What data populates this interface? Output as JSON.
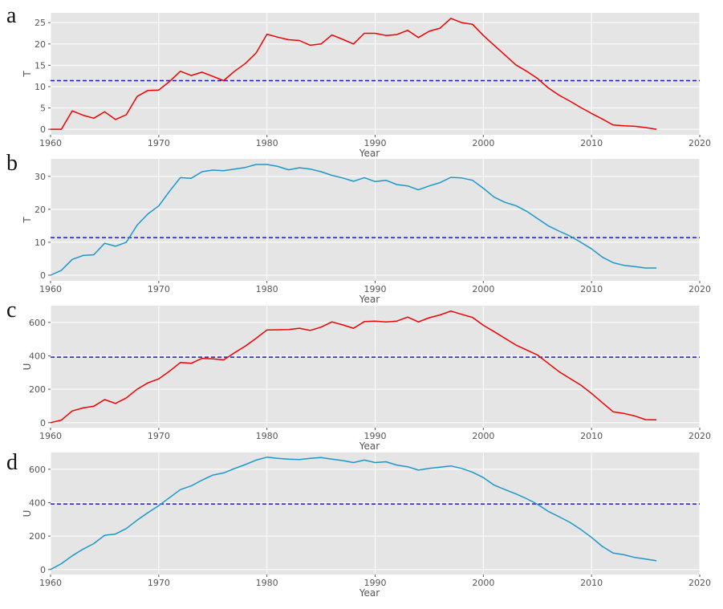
{
  "chart_data": [
    {
      "type": "line",
      "panel_label": "a",
      "xlabel": "Year",
      "ylabel": "T",
      "xlim": [
        1960,
        2020
      ],
      "ylim": [
        -1.3,
        27.3
      ],
      "xticks": [
        1960,
        1970,
        1980,
        1990,
        2000,
        2010,
        2020
      ],
      "yticks": [
        0,
        5,
        10,
        15,
        20,
        25
      ],
      "grid": true,
      "x": [
        1960,
        1961,
        1962,
        1963,
        1964,
        1965,
        1966,
        1967,
        1968,
        1969,
        1970,
        1971,
        1972,
        1973,
        1974,
        1975,
        1976,
        1977,
        1978,
        1979,
        1980,
        1981,
        1982,
        1983,
        1984,
        1985,
        1986,
        1987,
        1988,
        1989,
        1990,
        1991,
        1992,
        1993,
        1994,
        1995,
        1996,
        1997,
        1998,
        1999,
        2000,
        2001,
        2002,
        2003,
        2004,
        2005,
        2006,
        2007,
        2008,
        2009,
        2010,
        2011,
        2012,
        2013,
        2014,
        2015,
        2016
      ],
      "series": [
        {
          "values": [
            0,
            0,
            4.3,
            3.3,
            2.6,
            4.1,
            2.3,
            3.4,
            7.7,
            9.1,
            9.2,
            11.2,
            13.6,
            12.6,
            13.4,
            12.4,
            11.4,
            13.6,
            15.4,
            17.9,
            22.3,
            21.6,
            21.0,
            20.8,
            19.7,
            20.0,
            22.1,
            21.1,
            20.0,
            22.5,
            22.5,
            22.0,
            22.2,
            23.2,
            21.5,
            23.0,
            23.7,
            26.0,
            25.0,
            24.6,
            22.0,
            19.7,
            17.4,
            15.1,
            13.6,
            11.9,
            9.7,
            8.0,
            6.6,
            5.1,
            3.7,
            2.4,
            1.0,
            0.8,
            0.7,
            0.4,
            0.0
          ],
          "color": "#ee0000"
        }
      ],
      "hline": {
        "value": 11.4,
        "color": "#1a1acc",
        "style": "dashed"
      }
    },
    {
      "type": "line",
      "panel_label": "b",
      "xlabel": "Year",
      "ylabel": "T",
      "xlim": [
        1960,
        2020
      ],
      "ylim": [
        -1.7,
        35.3
      ],
      "xticks": [
        1960,
        1970,
        1980,
        1990,
        2000,
        2010,
        2020
      ],
      "yticks": [
        0,
        10,
        20,
        30
      ],
      "grid": true,
      "x": [
        1960,
        1961,
        1962,
        1963,
        1964,
        1965,
        1966,
        1967,
        1968,
        1969,
        1970,
        1971,
        1972,
        1973,
        1974,
        1975,
        1976,
        1977,
        1978,
        1979,
        1980,
        1981,
        1982,
        1983,
        1984,
        1985,
        1986,
        1987,
        1988,
        1989,
        1990,
        1991,
        1992,
        1993,
        1994,
        1995,
        1996,
        1997,
        1998,
        1999,
        2000,
        2001,
        2002,
        2003,
        2004,
        2005,
        2006,
        2007,
        2008,
        2009,
        2010,
        2011,
        2012,
        2013,
        2014,
        2015,
        2016
      ],
      "series": [
        {
          "values": [
            0,
            1.5,
            4.8,
            6.0,
            6.2,
            9.7,
            8.8,
            10.0,
            15.2,
            18.6,
            21.0,
            25.5,
            29.6,
            29.4,
            31.4,
            31.9,
            31.7,
            32.2,
            32.7,
            33.6,
            33.6,
            33.0,
            32.0,
            32.6,
            32.2,
            31.4,
            30.3,
            29.5,
            28.5,
            29.6,
            28.4,
            28.8,
            27.5,
            27.1,
            25.9,
            27.1,
            28.1,
            29.7,
            29.5,
            28.8,
            26.4,
            23.7,
            22.1,
            21.1,
            19.4,
            17.2,
            15.0,
            13.4,
            11.9,
            10.0,
            8.0,
            5.5,
            3.8,
            3.0,
            2.6,
            2.2,
            2.2
          ],
          "color": "#1b98c9"
        }
      ],
      "hline": {
        "value": 11.4,
        "color": "#1a1acc",
        "style": "dashed"
      }
    },
    {
      "type": "line",
      "panel_label": "c",
      "xlabel": "Year",
      "ylabel": "U",
      "xlim": [
        1960,
        2020
      ],
      "ylim": [
        -30,
        700
      ],
      "xticks": [
        1960,
        1970,
        1980,
        1990,
        2000,
        2010,
        2020
      ],
      "yticks": [
        0,
        200,
        400,
        600
      ],
      "grid": true,
      "x": [
        1960,
        1961,
        1962,
        1963,
        1964,
        1965,
        1966,
        1967,
        1968,
        1969,
        1970,
        1971,
        1972,
        1973,
        1974,
        1975,
        1976,
        1977,
        1978,
        1979,
        1980,
        1981,
        1982,
        1983,
        1984,
        1985,
        1986,
        1987,
        1988,
        1989,
        1990,
        1991,
        1992,
        1993,
        1994,
        1995,
        1996,
        1997,
        1998,
        1999,
        2000,
        2001,
        2002,
        2003,
        2004,
        2005,
        2006,
        2007,
        2008,
        2009,
        2010,
        2011,
        2012,
        2013,
        2014,
        2015,
        2016
      ],
      "series": [
        {
          "values": [
            0,
            15,
            70,
            88,
            98,
            138,
            115,
            148,
            200,
            238,
            262,
            308,
            360,
            355,
            385,
            382,
            376,
            418,
            458,
            505,
            555,
            556,
            557,
            565,
            552,
            572,
            603,
            585,
            565,
            605,
            608,
            603,
            608,
            632,
            603,
            628,
            645,
            668,
            648,
            630,
            583,
            545,
            505,
            465,
            435,
            405,
            355,
            305,
            265,
            225,
            175,
            120,
            65,
            55,
            40,
            18,
            17
          ],
          "color": "#ee0000"
        }
      ],
      "hline": {
        "value": 392,
        "color": "#1a1acc",
        "style": "dashed"
      }
    },
    {
      "type": "line",
      "panel_label": "d",
      "xlabel": "Year",
      "ylabel": "U",
      "xlim": [
        1960,
        2020
      ],
      "ylim": [
        -30,
        700
      ],
      "xticks": [
        1960,
        1970,
        1980,
        1990,
        2000,
        2010,
        2020
      ],
      "yticks": [
        0,
        200,
        400,
        600
      ],
      "grid": true,
      "x": [
        1960,
        1961,
        1962,
        1963,
        1964,
        1965,
        1966,
        1967,
        1968,
        1969,
        1970,
        1971,
        1972,
        1973,
        1974,
        1975,
        1976,
        1977,
        1978,
        1979,
        1980,
        1981,
        1982,
        1983,
        1984,
        1985,
        1986,
        1987,
        1988,
        1989,
        1990,
        1991,
        1992,
        1993,
        1994,
        1995,
        1996,
        1997,
        1998,
        1999,
        2000,
        2001,
        2002,
        2003,
        2004,
        2005,
        2006,
        2007,
        2008,
        2009,
        2010,
        2011,
        2012,
        2013,
        2014,
        2015,
        2016
      ],
      "series": [
        {
          "values": [
            0,
            35,
            82,
            122,
            155,
            205,
            212,
            245,
            295,
            340,
            382,
            430,
            478,
            500,
            535,
            565,
            578,
            604,
            628,
            655,
            672,
            665,
            660,
            658,
            665,
            670,
            660,
            652,
            640,
            655,
            640,
            645,
            625,
            615,
            595,
            605,
            612,
            620,
            605,
            582,
            550,
            505,
            478,
            453,
            424,
            390,
            348,
            316,
            282,
            240,
            192,
            138,
            98,
            88,
            72,
            62,
            52
          ],
          "color": "#1b98c9"
        }
      ],
      "hline": {
        "value": 392,
        "color": "#1a1acc",
        "style": "dashed"
      }
    }
  ]
}
